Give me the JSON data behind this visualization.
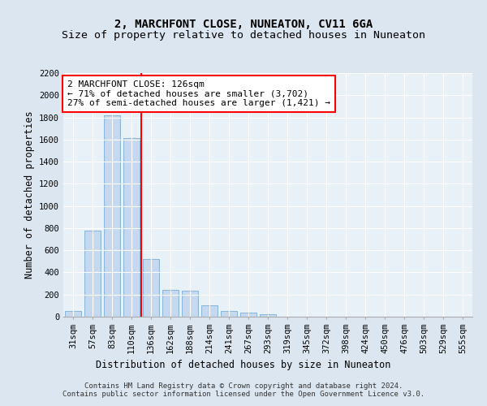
{
  "title": "2, MARCHFONT CLOSE, NUNEATON, CV11 6GA",
  "subtitle": "Size of property relative to detached houses in Nuneaton",
  "xlabel": "Distribution of detached houses by size in Nuneaton",
  "ylabel": "Number of detached properties",
  "footer_line1": "Contains HM Land Registry data © Crown copyright and database right 2024.",
  "footer_line2": "Contains public sector information licensed under the Open Government Licence v3.0.",
  "categories": [
    "31sqm",
    "57sqm",
    "83sqm",
    "110sqm",
    "136sqm",
    "162sqm",
    "188sqm",
    "214sqm",
    "241sqm",
    "267sqm",
    "293sqm",
    "319sqm",
    "345sqm",
    "372sqm",
    "398sqm",
    "424sqm",
    "450sqm",
    "476sqm",
    "503sqm",
    "529sqm",
    "555sqm"
  ],
  "values": [
    50,
    780,
    1820,
    1610,
    520,
    240,
    235,
    105,
    55,
    40,
    20,
    0,
    0,
    0,
    0,
    0,
    0,
    0,
    0,
    0,
    0
  ],
  "bar_color": "#c5d8ef",
  "bar_edge_color": "#7badd4",
  "vline_color": "red",
  "vline_x_index": 3.5,
  "annotation_text": "2 MARCHFONT CLOSE: 126sqm\n← 71% of detached houses are smaller (3,702)\n27% of semi-detached houses are larger (1,421) →",
  "annotation_box_color": "white",
  "annotation_box_edge_color": "red",
  "ylim": [
    0,
    2200
  ],
  "yticks": [
    0,
    200,
    400,
    600,
    800,
    1000,
    1200,
    1400,
    1600,
    1800,
    2000,
    2200
  ],
  "background_color": "#dce6f0",
  "plot_background_color": "#e8f0f8",
  "title_fontsize": 10,
  "axis_label_fontsize": 8.5,
  "tick_fontsize": 7.5,
  "footer_fontsize": 6.5,
  "annotation_fontsize": 8
}
